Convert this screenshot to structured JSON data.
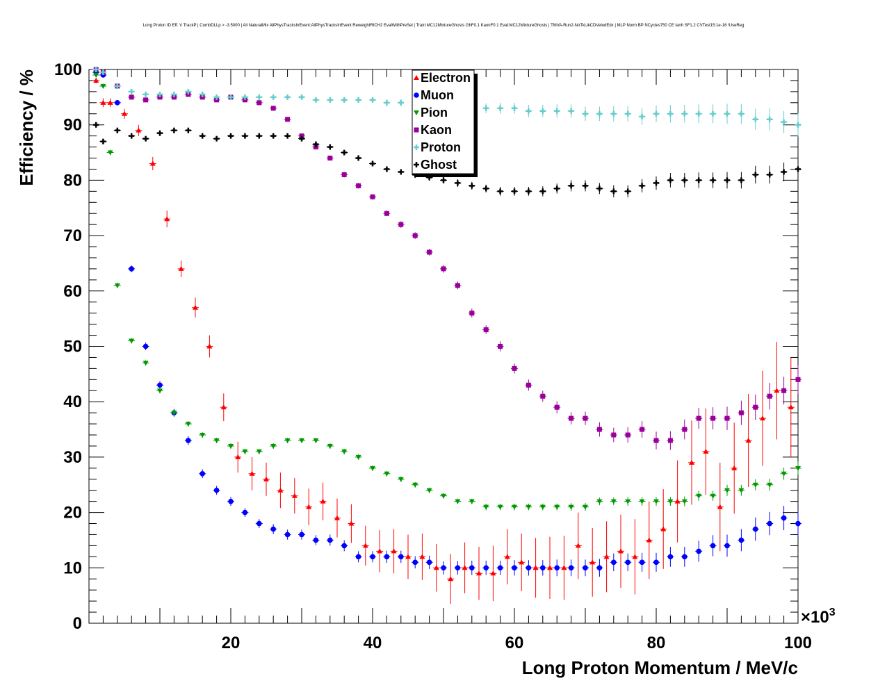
{
  "chart_data": {
    "type": "scatter",
    "title": "Long Proton ID Eff. V TrackP | CombDLLp > -3.5000 | All NaturalMix AllPhysTracksInEvent:AllPhysTracksInEvent ReweightRICH2 EvalWithPreSel | Train:MC12MixtureGhosts GhF0.1 KaonF0.1 Eval:MC12MixtureGhosts | TMVA-Run2-NoTkLikCDVelodEdx | MLP Norm BP NCycles750 CE tanh SF1.2 CVTest15:1e-16 !UseReg",
    "xlabel": "Long Proton Momentum / MeV/c",
    "ylabel": "Efficiency / %",
    "x_multiplier": "×10",
    "x_multiplier_exp": "3",
    "xlim": [
      0,
      100
    ],
    "ylim": [
      0,
      100
    ],
    "x_ticks": [
      20,
      40,
      60,
      80,
      100
    ],
    "y_ticks": [
      0,
      10,
      20,
      30,
      40,
      50,
      60,
      70,
      80,
      90,
      100
    ],
    "legend_position": "top-center",
    "series": [
      {
        "name": "Electron",
        "color": "#ff0000",
        "marker": "triangle-up",
        "x": [
          1,
          2,
          3,
          5,
          7,
          9,
          11,
          13,
          15,
          17,
          19,
          21,
          23,
          25,
          27,
          29,
          31,
          33,
          35,
          37,
          39,
          41,
          43,
          45,
          47,
          49,
          51,
          53,
          55,
          57,
          59,
          61,
          63,
          65,
          67,
          69,
          71,
          73,
          75,
          77,
          79,
          81,
          83,
          85,
          87,
          89,
          91,
          93,
          95,
          97,
          99
        ],
        "y": [
          98,
          94,
          94,
          92,
          89,
          83,
          73,
          64,
          57,
          50,
          39,
          30,
          27,
          26,
          24,
          23,
          21,
          22,
          19,
          18,
          14,
          13,
          13,
          12,
          12,
          10,
          8,
          10,
          9,
          9,
          12,
          11,
          10,
          10,
          10,
          14,
          11,
          12,
          13,
          12,
          15,
          17,
          22,
          29,
          31,
          21,
          28,
          33,
          37,
          42,
          39
        ],
        "err": [
          0.5,
          0.8,
          0.8,
          0.9,
          1,
          1.2,
          1.5,
          1.5,
          1.8,
          2,
          2.5,
          2.8,
          3,
          3,
          3.2,
          3.2,
          3.3,
          3.4,
          3.5,
          3.5,
          3.6,
          3.8,
          4,
          4,
          4.2,
          4.3,
          4.5,
          4.6,
          4.8,
          5,
          5,
          5.2,
          5.4,
          5.6,
          5.8,
          6,
          6.2,
          6.4,
          6.6,
          6.8,
          7,
          7.2,
          7.4,
          7.6,
          7.8,
          8,
          8.2,
          8.4,
          8.6,
          8.8,
          9
        ]
      },
      {
        "name": "Muon",
        "color": "#0000ff",
        "marker": "circle",
        "x": [
          1,
          2,
          4,
          6,
          8,
          10,
          12,
          14,
          16,
          18,
          20,
          22,
          24,
          26,
          28,
          30,
          32,
          34,
          36,
          38,
          40,
          42,
          44,
          46,
          48,
          50,
          52,
          54,
          56,
          58,
          60,
          62,
          64,
          66,
          68,
          70,
          72,
          74,
          76,
          78,
          80,
          82,
          84,
          86,
          88,
          90,
          92,
          94,
          96,
          98,
          100
        ],
        "y": [
          99.5,
          99,
          94,
          64,
          50,
          43,
          38,
          33,
          27,
          24,
          22,
          20,
          18,
          17,
          16,
          16,
          15,
          15,
          14,
          12,
          12,
          12,
          12,
          11,
          11,
          10,
          10,
          10,
          10,
          10,
          10,
          10,
          10,
          10,
          10,
          10,
          10,
          11,
          11,
          11,
          11,
          12,
          12,
          13,
          14,
          14,
          15,
          17,
          18,
          19,
          18
        ],
        "err": [
          0.3,
          0.4,
          0.5,
          0.6,
          0.7,
          0.7,
          0.7,
          0.8,
          0.8,
          0.8,
          0.8,
          0.8,
          0.8,
          0.9,
          0.9,
          0.9,
          0.9,
          1,
          1,
          1,
          1,
          1.1,
          1.1,
          1.1,
          1.2,
          1.2,
          1.2,
          1.3,
          1.3,
          1.3,
          1.4,
          1.4,
          1.4,
          1.5,
          1.5,
          1.5,
          1.6,
          1.6,
          1.6,
          1.7,
          1.7,
          1.8,
          1.8,
          1.9,
          1.9,
          2,
          2,
          2.1,
          2.1,
          2.2,
          2.2
        ]
      },
      {
        "name": "Pion",
        "color": "#009900",
        "marker": "triangle-down",
        "x": [
          1,
          2,
          3,
          4,
          6,
          8,
          10,
          12,
          14,
          16,
          18,
          20,
          22,
          24,
          26,
          28,
          30,
          32,
          34,
          36,
          38,
          40,
          42,
          44,
          46,
          48,
          50,
          52,
          54,
          56,
          58,
          60,
          62,
          64,
          66,
          68,
          70,
          72,
          74,
          76,
          78,
          80,
          82,
          84,
          86,
          88,
          90,
          92,
          94,
          96,
          98,
          100
        ],
        "y": [
          99,
          97,
          85,
          61,
          51,
          47,
          42,
          38,
          36,
          34,
          33,
          32,
          31,
          31,
          32,
          33,
          33,
          33,
          32,
          31,
          30,
          28,
          27,
          26,
          25,
          24,
          23,
          22,
          22,
          21,
          21,
          21,
          21,
          21,
          21,
          21,
          21,
          22,
          22,
          22,
          22,
          22,
          22,
          22,
          23,
          23,
          24,
          24,
          25,
          25,
          27,
          28
        ],
        "err": [
          0.3,
          0.4,
          0.5,
          0.5,
          0.5,
          0.5,
          0.5,
          0.5,
          0.5,
          0.5,
          0.5,
          0.5,
          0.5,
          0.5,
          0.5,
          0.5,
          0.5,
          0.5,
          0.5,
          0.5,
          0.5,
          0.5,
          0.5,
          0.5,
          0.5,
          0.5,
          0.5,
          0.5,
          0.5,
          0.6,
          0.6,
          0.6,
          0.6,
          0.6,
          0.6,
          0.7,
          0.7,
          0.7,
          0.7,
          0.8,
          0.8,
          0.8,
          0.8,
          0.9,
          0.9,
          0.9,
          1,
          1,
          1,
          1.1,
          1.1,
          1.2
        ]
      },
      {
        "name": "Kaon",
        "color": "#990099",
        "marker": "square",
        "x": [
          1,
          2,
          4,
          6,
          8,
          10,
          12,
          14,
          16,
          18,
          20,
          22,
          24,
          26,
          28,
          30,
          32,
          34,
          36,
          38,
          40,
          42,
          44,
          46,
          48,
          50,
          52,
          54,
          56,
          58,
          60,
          62,
          64,
          66,
          68,
          70,
          72,
          74,
          76,
          78,
          80,
          82,
          84,
          86,
          88,
          90,
          92,
          94,
          96,
          98,
          100
        ],
        "y": [
          100,
          99.5,
          97,
          95,
          94.5,
          95,
          95,
          95.5,
          95,
          94.5,
          95,
          94.5,
          94,
          93,
          91,
          88,
          86,
          84,
          81,
          79,
          77,
          74,
          72,
          70,
          67,
          64,
          61,
          56,
          53,
          50,
          46,
          43,
          41,
          39,
          37,
          37,
          35,
          34,
          34,
          35,
          33,
          33,
          35,
          37,
          37,
          37,
          38,
          39,
          41,
          42,
          44
        ],
        "err": [
          0.2,
          0.2,
          0.3,
          0.3,
          0.3,
          0.3,
          0.3,
          0.3,
          0.3,
          0.3,
          0.3,
          0.3,
          0.3,
          0.3,
          0.4,
          0.4,
          0.4,
          0.4,
          0.5,
          0.5,
          0.5,
          0.5,
          0.6,
          0.6,
          0.6,
          0.7,
          0.7,
          0.8,
          0.8,
          0.9,
          0.9,
          1,
          1,
          1.1,
          1.1,
          1.2,
          1.3,
          1.3,
          1.4,
          1.5,
          1.6,
          1.7,
          1.8,
          1.9,
          2,
          2.1,
          2.2,
          2.3,
          2.4,
          2.5,
          2.6
        ]
      },
      {
        "name": "Proton",
        "color": "#66cccc",
        "marker": "cross",
        "x": [
          1,
          2,
          4,
          6,
          8,
          10,
          12,
          14,
          16,
          18,
          20,
          22,
          24,
          26,
          28,
          30,
          32,
          34,
          36,
          38,
          40,
          42,
          44,
          46,
          48,
          50,
          52,
          54,
          56,
          58,
          60,
          62,
          64,
          66,
          68,
          70,
          72,
          74,
          76,
          78,
          80,
          82,
          84,
          86,
          88,
          90,
          92,
          94,
          96,
          98,
          100
        ],
        "y": [
          100,
          99.5,
          97,
          96,
          95.5,
          95.5,
          95.5,
          96,
          95.5,
          95,
          95,
          95,
          95,
          95,
          95,
          95,
          94.5,
          94.5,
          94.5,
          94.5,
          94.5,
          94,
          94,
          93.5,
          93.5,
          93.5,
          93.5,
          93,
          93,
          93,
          93,
          92.5,
          92.5,
          92.5,
          92.5,
          92,
          92,
          92,
          92,
          91.5,
          92,
          92,
          92,
          92,
          92,
          92,
          92,
          91,
          91,
          90.5,
          90
        ],
        "err": [
          0.1,
          0.1,
          0.2,
          0.2,
          0.2,
          0.2,
          0.2,
          0.2,
          0.2,
          0.2,
          0.3,
          0.3,
          0.3,
          0.3,
          0.3,
          0.4,
          0.4,
          0.4,
          0.5,
          0.5,
          0.5,
          0.6,
          0.6,
          0.7,
          0.7,
          0.8,
          0.8,
          0.9,
          0.9,
          1,
          1,
          1.1,
          1.1,
          1.2,
          1.2,
          1.3,
          1.3,
          1.4,
          1.4,
          1.5,
          1.5,
          1.6,
          1.6,
          1.7,
          1.7,
          1.8,
          1.8,
          1.9,
          2,
          2,
          2.1
        ]
      },
      {
        "name": "Ghost",
        "color": "#000000",
        "marker": "cross",
        "x": [
          1,
          2,
          4,
          6,
          8,
          10,
          12,
          14,
          16,
          18,
          20,
          22,
          24,
          26,
          28,
          30,
          32,
          34,
          36,
          38,
          40,
          42,
          44,
          46,
          48,
          50,
          52,
          54,
          56,
          58,
          60,
          62,
          64,
          66,
          68,
          70,
          72,
          74,
          76,
          78,
          80,
          82,
          84,
          86,
          88,
          90,
          92,
          94,
          96,
          98,
          100
        ],
        "y": [
          90,
          87,
          89,
          88,
          87.5,
          88.5,
          89,
          89,
          88,
          87.5,
          88,
          88,
          88,
          88,
          88,
          87.5,
          86.5,
          86,
          85,
          84,
          83,
          82,
          81.5,
          81,
          80.5,
          80,
          79.5,
          79,
          78.5,
          78,
          78,
          78,
          78,
          78.5,
          79,
          79,
          78.5,
          78,
          78,
          79,
          79.5,
          80,
          80,
          80,
          80,
          80,
          80,
          81,
          81,
          81.5,
          82
        ],
        "err": [
          0.2,
          0.2,
          0.3,
          0.3,
          0.3,
          0.3,
          0.3,
          0.3,
          0.3,
          0.3,
          0.3,
          0.3,
          0.3,
          0.3,
          0.3,
          0.4,
          0.4,
          0.4,
          0.4,
          0.5,
          0.5,
          0.5,
          0.5,
          0.6,
          0.6,
          0.6,
          0.7,
          0.7,
          0.7,
          0.8,
          0.8,
          0.8,
          0.9,
          0.9,
          1,
          1,
          1,
          1.1,
          1.1,
          1.2,
          1.2,
          1.3,
          1.3,
          1.4,
          1.4,
          1.5,
          1.5,
          1.6,
          1.6,
          1.7,
          1.7
        ]
      }
    ]
  }
}
